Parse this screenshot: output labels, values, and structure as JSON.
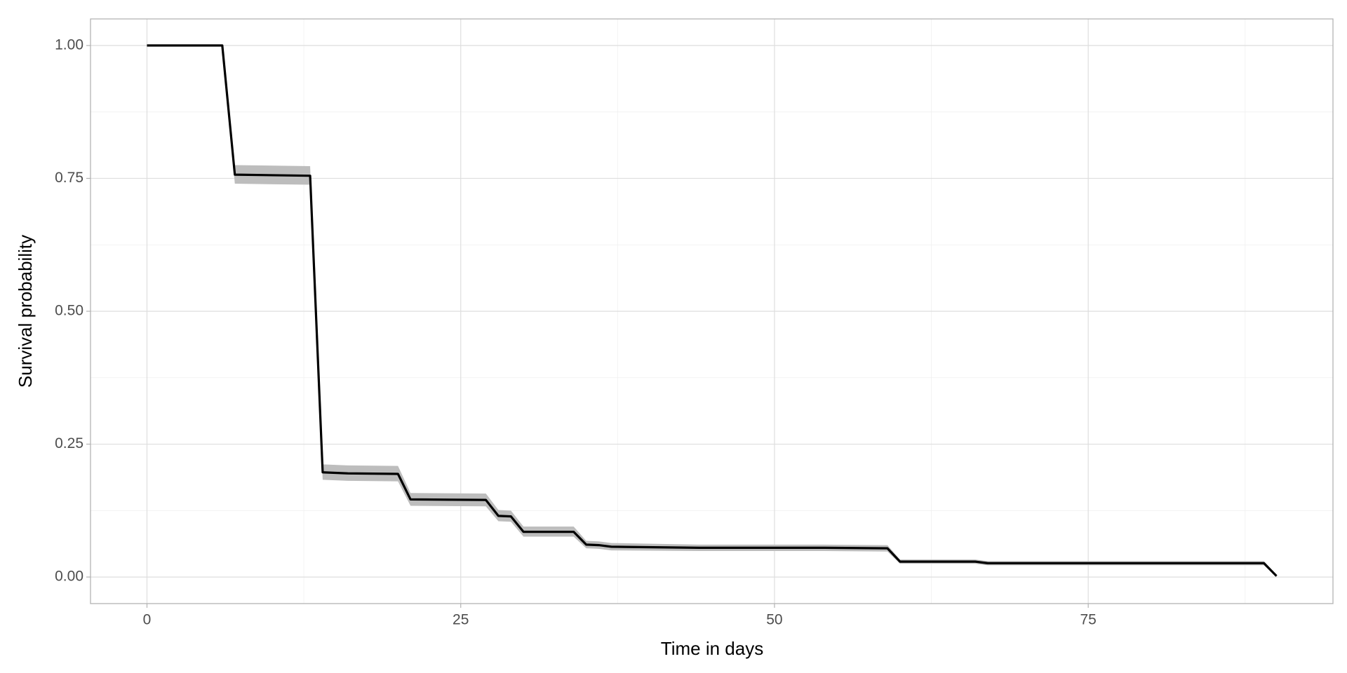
{
  "chart_data": {
    "type": "line",
    "x_label": "Time in days",
    "y_label": "Survival probability",
    "x": [
      0,
      6,
      7,
      13,
      14,
      16,
      20,
      21,
      27,
      28,
      29,
      30,
      34,
      35,
      36,
      37,
      44,
      54,
      59,
      60,
      66,
      67,
      89,
      90
    ],
    "values": [
      1.0,
      1.0,
      0.757,
      0.755,
      0.197,
      0.195,
      0.194,
      0.146,
      0.145,
      0.115,
      0.114,
      0.085,
      0.085,
      0.061,
      0.06,
      0.057,
      0.055,
      0.055,
      0.054,
      0.029,
      0.029,
      0.026,
      0.026,
      0.002
    ],
    "upper": [
      1.0,
      1.0,
      0.775,
      0.773,
      0.212,
      0.21,
      0.209,
      0.158,
      0.157,
      0.126,
      0.125,
      0.095,
      0.095,
      0.068,
      0.067,
      0.064,
      0.061,
      0.061,
      0.06,
      0.033,
      0.033,
      0.03,
      0.03,
      0.004
    ],
    "lower": [
      1.0,
      1.0,
      0.74,
      0.738,
      0.183,
      0.181,
      0.18,
      0.134,
      0.133,
      0.105,
      0.104,
      0.076,
      0.076,
      0.054,
      0.053,
      0.05,
      0.049,
      0.049,
      0.048,
      0.025,
      0.025,
      0.022,
      0.022,
      0.0
    ],
    "color": "#000000",
    "band_color": "#bdbdbd",
    "xlim": [
      -4.5,
      94.5
    ],
    "ylim": [
      -0.05,
      1.05
    ],
    "xticks": [
      0,
      25,
      50,
      75
    ],
    "yticks": [
      {
        "value": 0,
        "label": "0.00"
      },
      0.25,
      {
        "value": 0.5,
        "label": "0.50"
      },
      0.75,
      {
        "value": 1,
        "label": "1.00"
      }
    ],
    "grid": true
  }
}
